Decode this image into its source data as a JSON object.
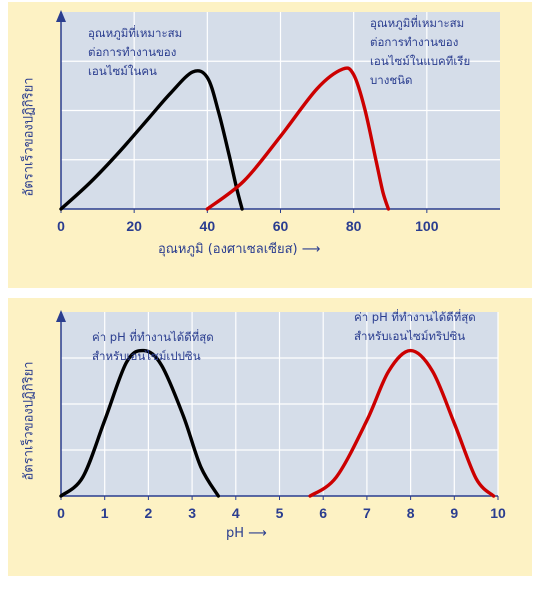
{
  "chart_data": [
    {
      "type": "line",
      "title": "",
      "ylabel": "อัตราเร็วของปฏิกิริยา",
      "xlabel": "อุณหภูมิ (องศาเซลเซียส)",
      "xlim": [
        0,
        120
      ],
      "x_ticks": [
        0,
        20,
        40,
        60,
        80,
        100
      ],
      "ylim": [
        0,
        1
      ],
      "grid": true,
      "series": [
        {
          "color": "#000000",
          "annotation": [
            "อุณหภูมิที่เหมาะสม",
            "ต่อการทำงานของ",
            "เอนไซม์ในคน"
          ],
          "x": [
            0,
            8,
            16,
            24,
            30,
            36,
            40,
            43,
            46,
            48,
            49.5
          ],
          "y": [
            0,
            0.19,
            0.41,
            0.65,
            0.83,
            0.98,
            0.94,
            0.7,
            0.38,
            0.15,
            0
          ]
        },
        {
          "color": "#cc0000",
          "annotation": [
            "อุณหภูมิที่เหมาะสม",
            "ต่อการทำงานของ",
            "เอนไซม์ในแบคทีเรีย",
            "บางชนิด"
          ],
          "x": [
            40,
            50,
            60,
            70,
            77,
            80,
            83,
            86,
            88,
            89.5
          ],
          "y": [
            0,
            0.2,
            0.52,
            0.86,
            1.0,
            0.96,
            0.72,
            0.36,
            0.12,
            0
          ]
        }
      ]
    },
    {
      "type": "line",
      "title": "",
      "ylabel": "อัตราเร็วของปฏิกิริยา",
      "xlabel": "pH",
      "xlim": [
        0,
        10
      ],
      "x_ticks": [
        0,
        1,
        2,
        3,
        4,
        5,
        6,
        7,
        8,
        9,
        10
      ],
      "ylim": [
        0,
        1
      ],
      "grid": true,
      "series": [
        {
          "color": "#000000",
          "annotation": [
            "ค่า pH ที่ทำงานได้ดีที่สุด",
            "สำหรับเอนไซม์เปปซิน"
          ],
          "x": [
            0,
            0.5,
            1,
            1.5,
            1.9,
            2.3,
            2.8,
            3.2,
            3.6
          ],
          "y": [
            0,
            0.13,
            0.52,
            0.92,
            1.0,
            0.9,
            0.55,
            0.2,
            0
          ]
        },
        {
          "color": "#cc0000",
          "annotation": [
            "ค่า pH ที่ทำงานได้ดีที่สุด",
            "สำหรับเอนไซม์ทริปซิน"
          ],
          "x": [
            5.7,
            6.3,
            7,
            7.5,
            8,
            8.5,
            9,
            9.5,
            9.9
          ],
          "y": [
            0,
            0.13,
            0.52,
            0.86,
            1.0,
            0.86,
            0.5,
            0.12,
            0
          ]
        }
      ]
    }
  ],
  "arrow_glyph": "⟶"
}
